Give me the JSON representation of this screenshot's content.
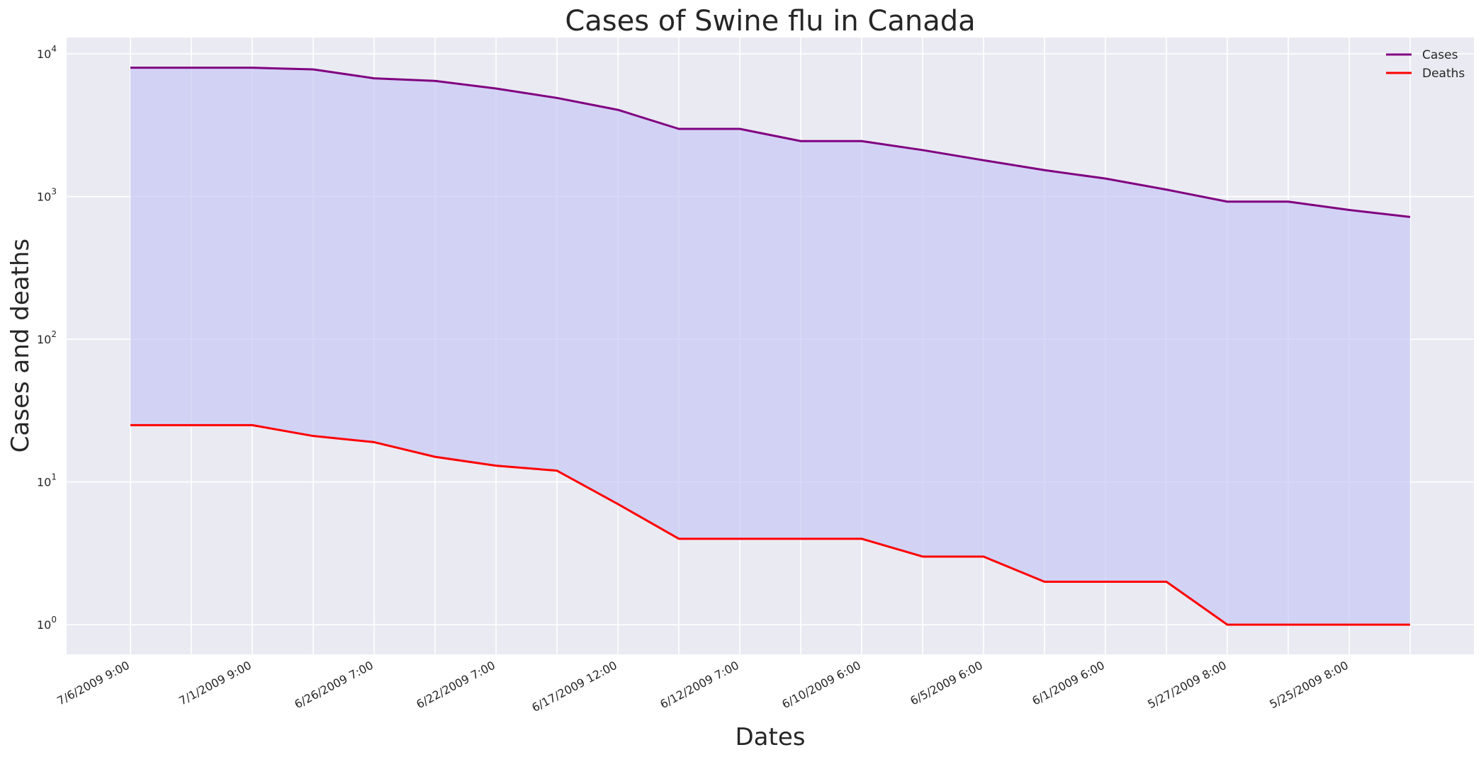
{
  "chart_data": {
    "type": "line",
    "title": "Cases of Swine flu in Canada",
    "xlabel": "Dates",
    "ylabel": "Cases and deaths",
    "yscale": "log",
    "ylim": [
      0.62,
      13000
    ],
    "yticks": [
      {
        "value": 1,
        "base": "10",
        "exp": "0"
      },
      {
        "value": 10,
        "base": "10",
        "exp": "1"
      },
      {
        "value": 100,
        "base": "10",
        "exp": "2"
      },
      {
        "value": 1000,
        "base": "10",
        "exp": "3"
      },
      {
        "value": 10000,
        "base": "10",
        "exp": "4"
      }
    ],
    "grid": true,
    "legend_position": "top-right",
    "fill_between": {
      "series": [
        "Cases",
        "Deaths"
      ],
      "color": "#c9c9f4"
    },
    "x_labels_shown_every": 2,
    "categories": [
      "7/6/2009 9:00",
      "",
      "7/1/2009 9:00",
      "",
      "6/26/2009 7:00",
      "",
      "6/22/2009 7:00",
      "",
      "6/17/2009 12:00",
      "",
      "6/12/2009 7:00",
      "",
      "6/10/2009 6:00",
      "",
      "6/5/2009 6:00",
      "",
      "6/1/2009 6:00",
      "",
      "5/27/2009 8:00",
      "",
      "5/25/2009 8:00",
      ""
    ],
    "series": [
      {
        "name": "Cases",
        "color": "#800080",
        "values": [
          7983,
          7983,
          7983,
          7775,
          6732,
          6457,
          5710,
          4905,
          4049,
          2978,
          2978,
          2446,
          2446,
          2115,
          1795,
          1530,
          1336,
          1118,
          921,
          921,
          805,
          719
        ]
      },
      {
        "name": "Deaths",
        "color": "#ff0000",
        "values": [
          25,
          25,
          25,
          21,
          19,
          15,
          13,
          12,
          7,
          4,
          4,
          4,
          4,
          3,
          3,
          2,
          2,
          2,
          1,
          1,
          1,
          1
        ]
      }
    ]
  }
}
